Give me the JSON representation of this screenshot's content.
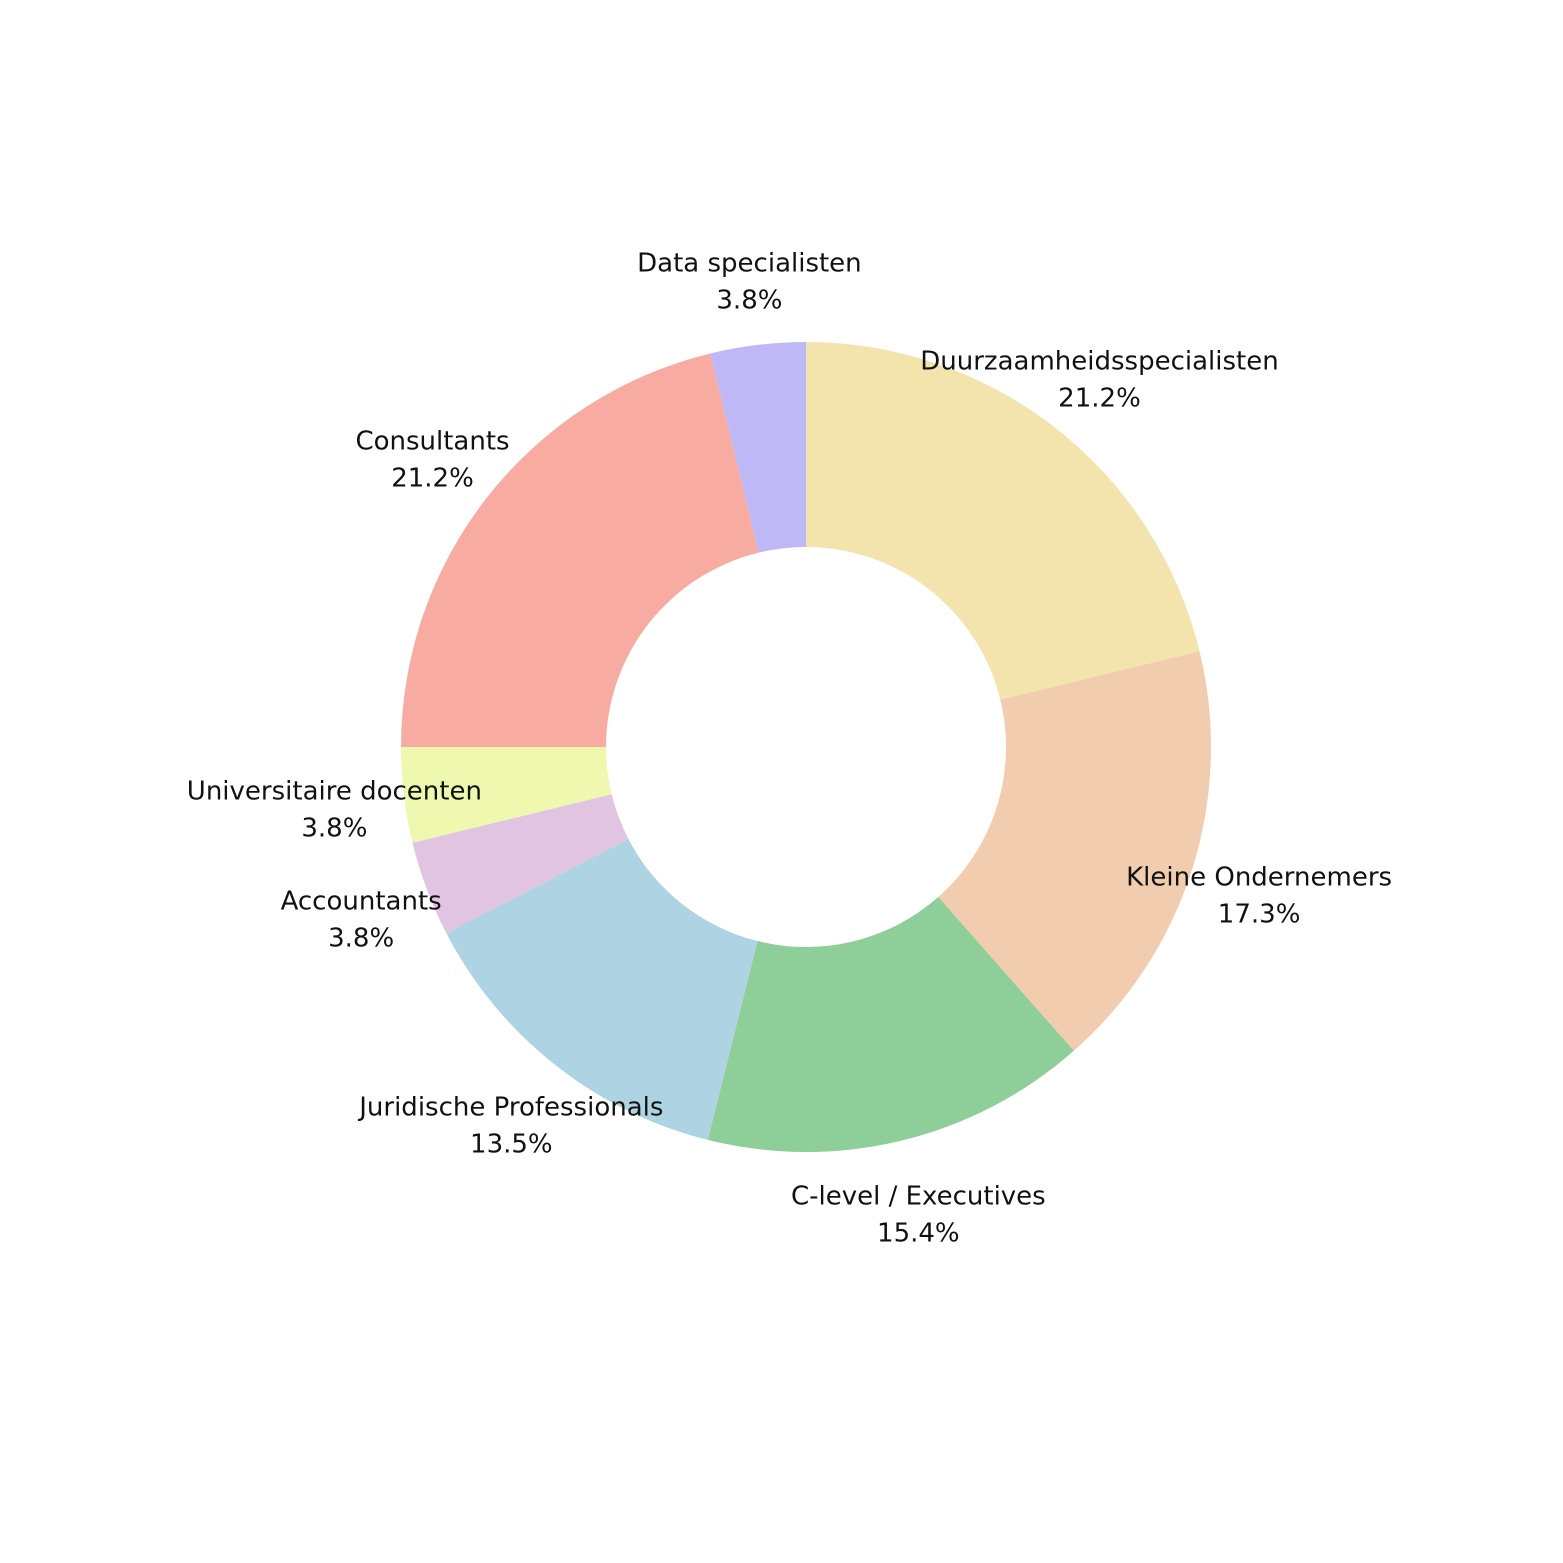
{
  "chart_data": {
    "type": "pie",
    "variant": "donut",
    "start_angle": "12 o'clock",
    "direction": "clockwise",
    "slices": [
      {
        "label": "Duurzaamheidsspecialisten",
        "value": 21.2,
        "percent_label": "21.2%",
        "color": "#F3E3AD"
      },
      {
        "label": "Kleine Ondernemers",
        "value": 17.3,
        "percent_label": "17.3%",
        "color": "#F2CCAF"
      },
      {
        "label": "C-level / Executives",
        "value": 15.4,
        "percent_label": "15.4%",
        "color": "#8DCE99"
      },
      {
        "label": "Juridische Professionals",
        "value": 13.5,
        "percent_label": "13.5%",
        "color": "#AED4E3"
      },
      {
        "label": "Accountants",
        "value": 3.8,
        "percent_label": "3.8%",
        "color": "#E1C3E2"
      },
      {
        "label": "Universitaire docenten",
        "value": 3.8,
        "percent_label": "3.8%",
        "color": "#EEF8AE"
      },
      {
        "label": "Consultants",
        "value": 21.2,
        "percent_label": "21.2%",
        "color": "#F8ABA0"
      },
      {
        "label": "Data specialisten",
        "value": 3.8,
        "percent_label": "3.8%",
        "color": "#BFB8F6"
      }
    ]
  }
}
